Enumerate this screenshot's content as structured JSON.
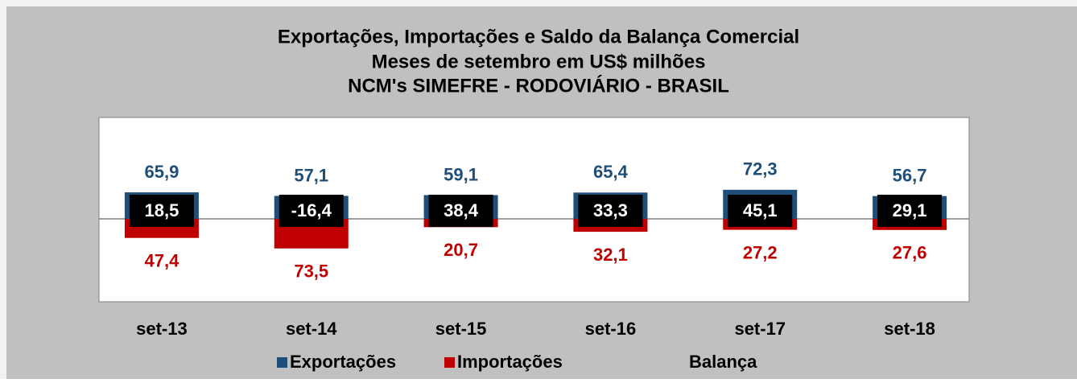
{
  "chart_data": {
    "type": "bar",
    "title": [
      "Exportações, Importações e Saldo da Balança Comercial",
      "Meses de setembro em US$ milhões",
      "NCM's SIMEFRE - RODOVIÁRIO - BRASIL"
    ],
    "categories": [
      "set-13",
      "set-14",
      "set-15",
      "set-16",
      "set-17",
      "set-18"
    ],
    "series": [
      {
        "name": "Exportações",
        "color": "#1f4e79",
        "values": [
          65.9,
          57.1,
          59.1,
          65.4,
          72.3,
          56.7
        ],
        "value_labels": [
          "65,9",
          "57,1",
          "59,1",
          "65,4",
          "72,3",
          "56,7"
        ]
      },
      {
        "name": "Importações",
        "color": "#c00000",
        "values": [
          47.4,
          73.5,
          20.7,
          32.1,
          27.2,
          27.6
        ],
        "value_labels": [
          "47,4",
          "73,5",
          "20,7",
          "32,1",
          "27,2",
          "27,6"
        ]
      },
      {
        "name": "Balança",
        "values": [
          18.5,
          -16.4,
          38.4,
          33.3,
          45.1,
          29.1
        ],
        "value_labels": [
          "18,5",
          "-16,4",
          "38,4",
          "33,3",
          "45,1",
          "29,1"
        ]
      }
    ],
    "ylim": [
      -206,
      252
    ]
  }
}
